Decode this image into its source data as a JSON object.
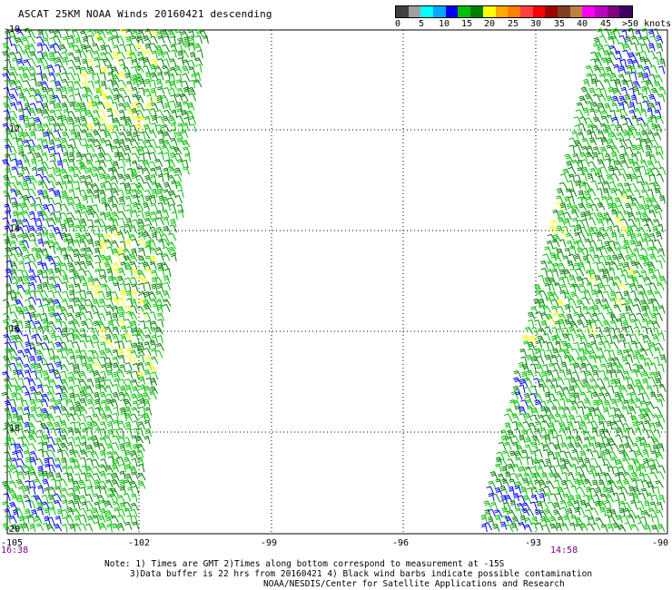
{
  "title": "ASCAT 25KM NOAA Winds 20160421 descending",
  "scale": {
    "colors": [
      "#404040",
      "#a0a0a0",
      "#00ffff",
      "#00aaff",
      "#0000ff",
      "#00c000",
      "#008000",
      "#ffff00",
      "#ffaa00",
      "#ff8000",
      "#ff4040",
      "#ff0000",
      "#a00000",
      "#804020",
      "#c08040",
      "#ff00ff",
      "#c000c0",
      "#800080",
      "#400060"
    ],
    "labels": [
      "0",
      "5",
      "10",
      "15",
      "20",
      "25",
      "30",
      "35",
      "40",
      "45",
      ">50 knots"
    ]
  },
  "map": {
    "lat_labels": [
      "-10",
      "-12",
      "-14",
      "-16",
      "-18",
      "-20"
    ],
    "lon_labels": [
      "-105",
      "-102",
      "-99",
      "-96",
      "-93",
      "-90"
    ],
    "times": [
      "16:38",
      "14:58"
    ],
    "barb_colors": {
      "green": "#00c000",
      "darkgreen": "#008000",
      "blue": "#0000ff",
      "yellow": "#ffff00"
    }
  },
  "notes": {
    "line1": "Note: 1) Times are GMT 2)Times along bottom correspond to measurement at -15S",
    "line2": "3)Data buffer is 22 hrs from 20160421 4) Black wind barbs indicate possible contamination",
    "line3": "NOAA/NESDIS/Center for Satellite Applications and Research"
  }
}
